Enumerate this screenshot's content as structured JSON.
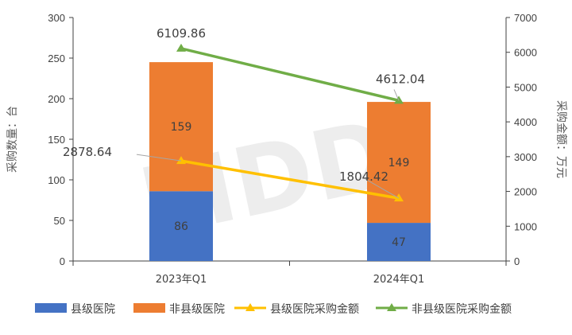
{
  "chart_data": {
    "type": "bar",
    "stacked": true,
    "categories": [
      "2023年Q1",
      "2024年Q1"
    ],
    "series": [
      {
        "name": "县级医院",
        "kind": "bar",
        "axis": "left",
        "values": [
          86,
          47
        ],
        "color": "#4472C4"
      },
      {
        "name": "非县级医院",
        "kind": "bar",
        "axis": "left",
        "values": [
          159,
          149
        ],
        "color": "#ED7D31"
      },
      {
        "name": "县级医院采购金额",
        "kind": "line",
        "axis": "right",
        "values": [
          2878.64,
          1804.42
        ],
        "labels": [
          "2878.64",
          "1804.42"
        ],
        "color": "#FFC000"
      },
      {
        "name": "非县级医院采购金额",
        "kind": "line",
        "axis": "right",
        "values": [
          6109.86,
          4612.04
        ],
        "labels": [
          "6109.86",
          "4612.04"
        ],
        "color": "#70AD47"
      }
    ],
    "ylabel": "采购数量：台",
    "y2label": "采购金额：万元",
    "ylim": [
      0,
      300
    ],
    "y2lim": [
      0,
      7000
    ],
    "yticks": [
      0,
      50,
      100,
      150,
      200,
      250,
      300
    ],
    "y2ticks": [
      0,
      1000,
      2000,
      3000,
      4000,
      5000,
      6000,
      7000
    ],
    "legend_position": "bottom",
    "grid": false,
    "watermark": "MDDi"
  }
}
